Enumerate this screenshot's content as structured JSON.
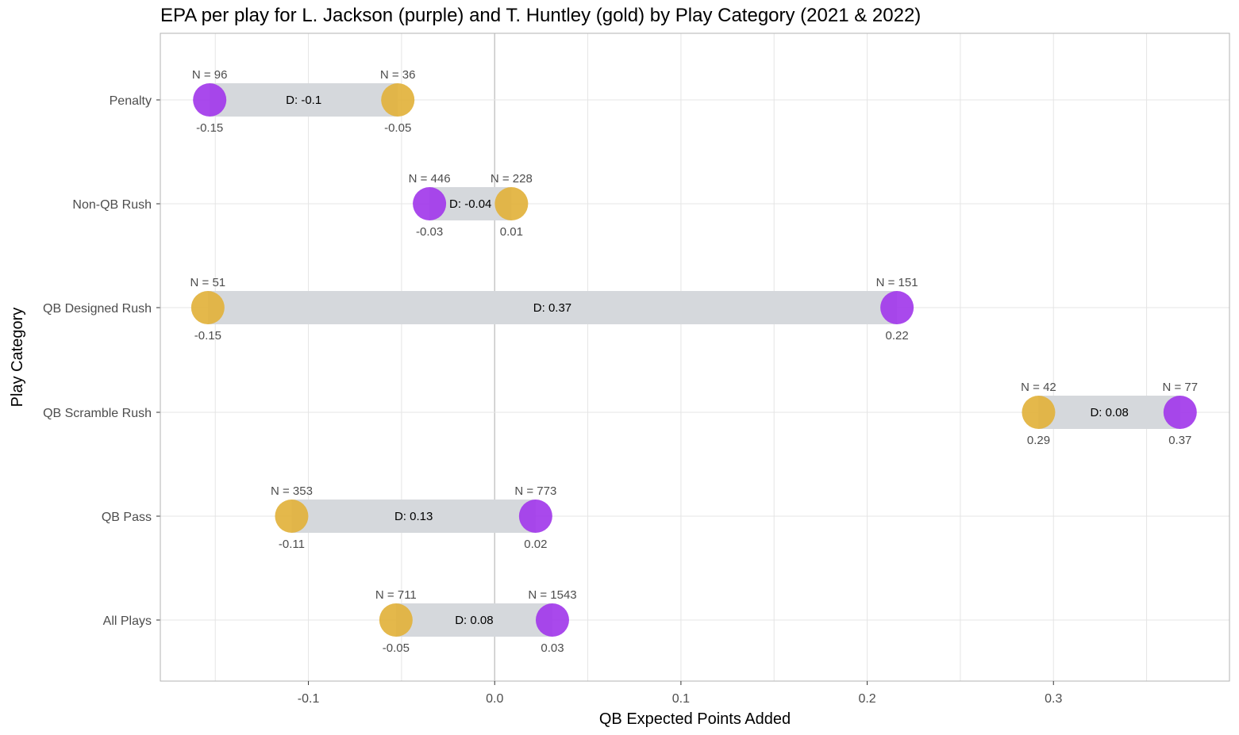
{
  "chart_data": {
    "type": "dumbbell",
    "title": "EPA per play for L. Jackson (purple) and T. Huntley (gold) by Play Category (2021 & 2022)",
    "xlabel": "QB Expected Points Added",
    "ylabel": "Play Category",
    "xlim": [
      -0.1795,
      0.3945
    ],
    "x_ticks": [
      -0.1,
      0.0,
      0.1,
      0.2,
      0.3
    ],
    "x_tick_labels": [
      "-0.1",
      "0.0",
      "0.1",
      "0.2",
      "0.3"
    ],
    "grid": true,
    "colors": {
      "jackson": "#a239ea",
      "huntley": "#e2b23c",
      "bar": "#d5d8dc",
      "grid": "#e5e5e5",
      "zero_line": "#c8c8c8",
      "panel_border": "#b3b3b3"
    },
    "series": [
      {
        "name": "L. Jackson",
        "color_name": "purple"
      },
      {
        "name": "T. Huntley",
        "color_name": "gold"
      }
    ],
    "categories": [
      "Penalty",
      "Non-QB Rush",
      "QB Designed Rush",
      "QB Scramble Rush",
      "QB Pass",
      "All Plays"
    ],
    "rows": [
      {
        "category": "Penalty",
        "jackson": {
          "epa": -0.153,
          "epa_label": "-0.15",
          "n_label": "N = 96"
        },
        "huntley": {
          "epa": -0.052,
          "epa_label": "-0.05",
          "n_label": "N = 36"
        },
        "diff_label": "D:  -0.1"
      },
      {
        "category": "Non-QB Rush",
        "jackson": {
          "epa": -0.035,
          "epa_label": "-0.03",
          "n_label": "N = 446"
        },
        "huntley": {
          "epa": 0.009,
          "epa_label": "0.01",
          "n_label": "N = 228"
        },
        "diff_label": "D:  -0.04"
      },
      {
        "category": "QB Designed Rush",
        "jackson": {
          "epa": 0.216,
          "epa_label": "0.22",
          "n_label": "N = 151"
        },
        "huntley": {
          "epa": -0.154,
          "epa_label": "-0.15",
          "n_label": "N = 51"
        },
        "diff_label": "D:  0.37"
      },
      {
        "category": "QB Scramble Rush",
        "jackson": {
          "epa": 0.368,
          "epa_label": "0.37",
          "n_label": "N = 77"
        },
        "huntley": {
          "epa": 0.292,
          "epa_label": "0.29",
          "n_label": "N = 42"
        },
        "diff_label": "D:  0.08"
      },
      {
        "category": "QB Pass",
        "jackson": {
          "epa": 0.022,
          "epa_label": "0.02",
          "n_label": "N = 773"
        },
        "huntley": {
          "epa": -0.109,
          "epa_label": "-0.11",
          "n_label": "N = 353"
        },
        "diff_label": "D:  0.13"
      },
      {
        "category": "All Plays",
        "jackson": {
          "epa": 0.031,
          "epa_label": "0.03",
          "n_label": "N = 1543"
        },
        "huntley": {
          "epa": -0.053,
          "epa_label": "-0.05",
          "n_label": "N = 711"
        },
        "diff_label": "D:  0.08"
      }
    ]
  }
}
